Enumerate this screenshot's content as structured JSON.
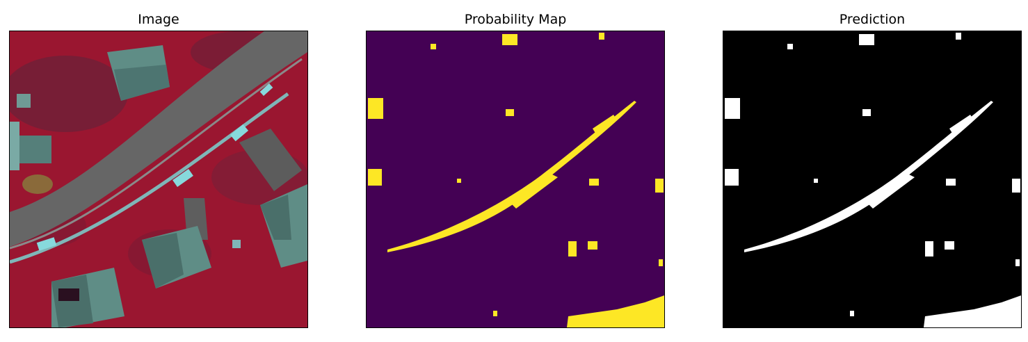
{
  "panels": [
    {
      "title": "Image",
      "content": "aerial-false-color"
    },
    {
      "title": "Probability Map",
      "content": "probability-map"
    },
    {
      "title": "Prediction",
      "content": "binary-prediction"
    }
  ],
  "colors": {
    "aerial_background": "#9a1630",
    "aerial_road": "#6a6a6a",
    "aerial_roofs": "#5f8d86",
    "aerial_marking": "#87d9dc",
    "probability_background": "#440154",
    "probability_foreground": "#fde725",
    "prediction_background": "#000000",
    "prediction_foreground": "#ffffff"
  }
}
